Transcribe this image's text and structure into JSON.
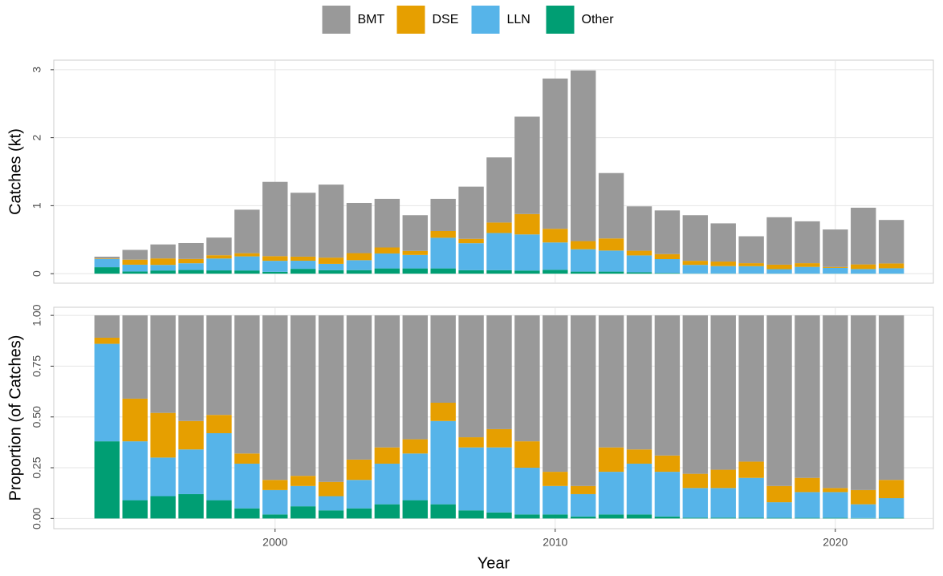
{
  "chart_data": [
    {
      "type": "bar",
      "stacked": true,
      "y_label": "Catches (kt)",
      "legend": "top",
      "grid": true,
      "x": [
        1994,
        1995,
        1996,
        1997,
        1998,
        1999,
        2000,
        2001,
        2002,
        2003,
        2004,
        2005,
        2006,
        2007,
        2008,
        2009,
        2010,
        2011,
        2012,
        2013,
        2014,
        2015,
        2016,
        2017,
        2018,
        2019,
        2020,
        2021,
        2022
      ],
      "xlim": [
        1992.1,
        2023.5
      ],
      "ylim": [
        -0.14,
        3.14
      ],
      "yticks": [
        0,
        1,
        2,
        3
      ],
      "series": [
        {
          "name": "BMT",
          "color": "#999999",
          "values": [
            0.027,
            0.144,
            0.206,
            0.234,
            0.26,
            0.64,
            1.093,
            0.94,
            1.074,
            0.738,
            0.715,
            0.525,
            0.473,
            0.768,
            0.958,
            1.432,
            2.21,
            2.51,
            0.962,
            0.653,
            0.642,
            0.671,
            0.562,
            0.396,
            0.698,
            0.616,
            0.552,
            0.834,
            0.64
          ]
        },
        {
          "name": "DSE",
          "color": "#E69F00",
          "values": [
            0.008,
            0.074,
            0.095,
            0.063,
            0.048,
            0.047,
            0.068,
            0.06,
            0.092,
            0.104,
            0.088,
            0.06,
            0.099,
            0.064,
            0.154,
            0.3,
            0.201,
            0.12,
            0.178,
            0.069,
            0.074,
            0.06,
            0.067,
            0.044,
            0.066,
            0.054,
            0.013,
            0.068,
            0.071
          ]
        },
        {
          "name": "LLN",
          "color": "#56B4E9",
          "values": [
            0.12,
            0.1,
            0.082,
            0.099,
            0.175,
            0.207,
            0.162,
            0.119,
            0.092,
            0.146,
            0.22,
            0.198,
            0.451,
            0.397,
            0.547,
            0.531,
            0.402,
            0.329,
            0.31,
            0.248,
            0.205,
            0.126,
            0.108,
            0.108,
            0.064,
            0.098,
            0.083,
            0.066,
            0.077
          ]
        },
        {
          "name": "Other",
          "color": "#009E73",
          "values": [
            0.095,
            0.032,
            0.047,
            0.054,
            0.048,
            0.047,
            0.027,
            0.071,
            0.052,
            0.052,
            0.077,
            0.077,
            0.077,
            0.051,
            0.051,
            0.046,
            0.057,
            0.03,
            0.03,
            0.02,
            0.009,
            0.003,
            0.003,
            0.002,
            0.002,
            0.002,
            0.002,
            0.002,
            0.002
          ]
        }
      ]
    },
    {
      "type": "bar",
      "stacked": true,
      "y_label": "Proportion (of Catches)",
      "x_label": "Year",
      "grid": true,
      "x": [
        1994,
        1995,
        1996,
        1997,
        1998,
        1999,
        2000,
        2001,
        2002,
        2003,
        2004,
        2005,
        2006,
        2007,
        2008,
        2009,
        2010,
        2011,
        2012,
        2013,
        2014,
        2015,
        2016,
        2017,
        2018,
        2019,
        2020,
        2021,
        2022
      ],
      "xlim": [
        1992.1,
        2023.5
      ],
      "xticks": [
        2000,
        2010,
        2020
      ],
      "ylim": [
        -0.05,
        1.04
      ],
      "yticks": [
        {
          "value": 0,
          "label": "0.00"
        },
        {
          "value": 0.25,
          "label": "0.25"
        },
        {
          "value": 0.5,
          "label": "0.50"
        },
        {
          "value": 0.75,
          "label": "0.75"
        },
        {
          "value": 1,
          "label": "1.00"
        }
      ],
      "series": [
        {
          "name": "BMT",
          "color": "#999999",
          "values": [
            0.11,
            0.41,
            0.48,
            0.52,
            0.49,
            0.68,
            0.81,
            0.79,
            0.82,
            0.71,
            0.65,
            0.61,
            0.43,
            0.6,
            0.56,
            0.62,
            0.77,
            0.84,
            0.65,
            0.66,
            0.69,
            0.78,
            0.76,
            0.72,
            0.84,
            0.8,
            0.85,
            0.86,
            0.81
          ]
        },
        {
          "name": "DSE",
          "color": "#E69F00",
          "values": [
            0.03,
            0.21,
            0.22,
            0.14,
            0.09,
            0.05,
            0.05,
            0.05,
            0.07,
            0.1,
            0.08,
            0.07,
            0.09,
            0.05,
            0.09,
            0.13,
            0.07,
            0.04,
            0.12,
            0.07,
            0.08,
            0.07,
            0.09,
            0.08,
            0.08,
            0.07,
            0.02,
            0.07,
            0.09
          ]
        },
        {
          "name": "LLN",
          "color": "#56B4E9",
          "values": [
            0.48,
            0.29,
            0.19,
            0.22,
            0.33,
            0.22,
            0.12,
            0.1,
            0.07,
            0.14,
            0.2,
            0.23,
            0.41,
            0.31,
            0.32,
            0.23,
            0.14,
            0.11,
            0.21,
            0.25,
            0.22,
            0.146,
            0.146,
            0.196,
            0.077,
            0.127,
            0.127,
            0.068,
            0.097
          ]
        },
        {
          "name": "Other",
          "color": "#009E73",
          "values": [
            0.38,
            0.09,
            0.11,
            0.12,
            0.09,
            0.05,
            0.02,
            0.06,
            0.04,
            0.05,
            0.07,
            0.09,
            0.07,
            0.04,
            0.03,
            0.02,
            0.02,
            0.01,
            0.02,
            0.02,
            0.01,
            0.004,
            0.004,
            0.004,
            0.003,
            0.003,
            0.003,
            0.002,
            0.003
          ]
        }
      ]
    }
  ]
}
